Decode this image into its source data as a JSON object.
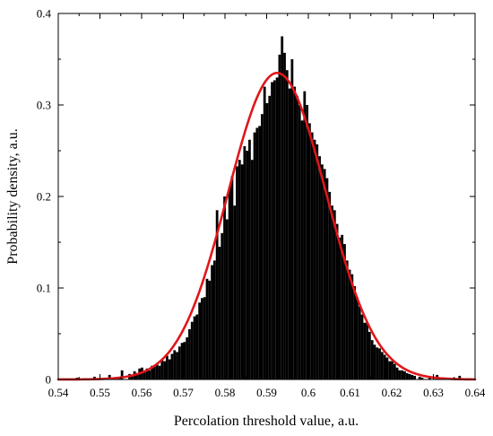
{
  "chart_data": {
    "type": "bar",
    "xlabel": "Percolation threshold value, a.u.",
    "ylabel": "Probability density, a.u.",
    "xlim": [
      0.54,
      0.64
    ],
    "ylim": [
      0,
      0.4
    ],
    "x_ticks": [
      "0.54",
      "0.55",
      "0.56",
      "0.57",
      "0.58",
      "0.59",
      "0.6",
      "0.61",
      "0.62",
      "0.63",
      "0.64"
    ],
    "y_ticks": [
      "0",
      "0.1",
      "0.2",
      "0.3",
      "0.4"
    ],
    "grid": false,
    "colors": {
      "bars": "#000000",
      "fit_curve": "#e0161a",
      "axes": "#000000"
    },
    "histogram": {
      "bin_width": 0.0006,
      "bins": [
        [
          0.5445,
          0.002
        ],
        [
          0.5451,
          0.001
        ],
        [
          0.5487,
          0.003
        ],
        [
          0.5511,
          0.002
        ],
        [
          0.5523,
          0.005
        ],
        [
          0.5547,
          0.003
        ],
        [
          0.5553,
          0.01
        ],
        [
          0.5571,
          0.006
        ],
        [
          0.5577,
          0.004
        ],
        [
          0.5583,
          0.009
        ],
        [
          0.5589,
          0.007
        ],
        [
          0.5595,
          0.012
        ],
        [
          0.5601,
          0.013
        ],
        [
          0.5607,
          0.008
        ],
        [
          0.5613,
          0.012
        ],
        [
          0.5619,
          0.01
        ],
        [
          0.5625,
          0.015
        ],
        [
          0.5631,
          0.014
        ],
        [
          0.5637,
          0.018
        ],
        [
          0.5643,
          0.015
        ],
        [
          0.5649,
          0.022
        ],
        [
          0.5655,
          0.02
        ],
        [
          0.5661,
          0.026
        ],
        [
          0.5667,
          0.022
        ],
        [
          0.5673,
          0.028
        ],
        [
          0.5679,
          0.032
        ],
        [
          0.5685,
          0.03
        ],
        [
          0.5691,
          0.036
        ],
        [
          0.5697,
          0.04
        ],
        [
          0.5703,
          0.041
        ],
        [
          0.5709,
          0.046
        ],
        [
          0.5715,
          0.055
        ],
        [
          0.5721,
          0.063
        ],
        [
          0.5727,
          0.069
        ],
        [
          0.5733,
          0.071
        ],
        [
          0.5739,
          0.084
        ],
        [
          0.5745,
          0.089
        ],
        [
          0.5751,
          0.09
        ],
        [
          0.5757,
          0.11
        ],
        [
          0.5763,
          0.108
        ],
        [
          0.5769,
          0.125
        ],
        [
          0.5775,
          0.13
        ],
        [
          0.5781,
          0.185
        ],
        [
          0.5787,
          0.145
        ],
        [
          0.5793,
          0.16
        ],
        [
          0.5799,
          0.2
        ],
        [
          0.5805,
          0.175
        ],
        [
          0.5811,
          0.21
        ],
        [
          0.5817,
          0.222
        ],
        [
          0.5823,
          0.19
        ],
        [
          0.5829,
          0.233
        ],
        [
          0.5835,
          0.24
        ],
        [
          0.5841,
          0.235
        ],
        [
          0.5847,
          0.255
        ],
        [
          0.5853,
          0.25
        ],
        [
          0.5859,
          0.262
        ],
        [
          0.5865,
          0.24
        ],
        [
          0.5871,
          0.27
        ],
        [
          0.5877,
          0.275
        ],
        [
          0.5883,
          0.277
        ],
        [
          0.5889,
          0.29
        ],
        [
          0.5895,
          0.32
        ],
        [
          0.5901,
          0.302
        ],
        [
          0.5907,
          0.31
        ],
        [
          0.5913,
          0.325
        ],
        [
          0.5919,
          0.327
        ],
        [
          0.5925,
          0.33
        ],
        [
          0.5931,
          0.355
        ],
        [
          0.5937,
          0.375
        ],
        [
          0.5943,
          0.357
        ],
        [
          0.5949,
          0.338
        ],
        [
          0.5955,
          0.318
        ],
        [
          0.5961,
          0.35
        ],
        [
          0.5967,
          0.32
        ],
        [
          0.5973,
          0.31
        ],
        [
          0.5979,
          0.3
        ],
        [
          0.5985,
          0.283
        ],
        [
          0.5991,
          0.315
        ],
        [
          0.5997,
          0.3
        ],
        [
          0.6003,
          0.28
        ],
        [
          0.6009,
          0.27
        ],
        [
          0.6015,
          0.262
        ],
        [
          0.6021,
          0.257
        ],
        [
          0.6027,
          0.244
        ],
        [
          0.6033,
          0.235
        ],
        [
          0.6039,
          0.23
        ],
        [
          0.6045,
          0.22
        ],
        [
          0.6051,
          0.205
        ],
        [
          0.6057,
          0.19
        ],
        [
          0.6063,
          0.185
        ],
        [
          0.6069,
          0.17
        ],
        [
          0.6075,
          0.155
        ],
        [
          0.6081,
          0.158
        ],
        [
          0.6087,
          0.148
        ],
        [
          0.6093,
          0.13
        ],
        [
          0.6099,
          0.12
        ],
        [
          0.6105,
          0.115
        ],
        [
          0.6111,
          0.102
        ],
        [
          0.6117,
          0.09
        ],
        [
          0.6123,
          0.08
        ],
        [
          0.6129,
          0.071
        ],
        [
          0.6135,
          0.062
        ],
        [
          0.6141,
          0.063
        ],
        [
          0.6147,
          0.052
        ],
        [
          0.6153,
          0.043
        ],
        [
          0.6159,
          0.038
        ],
        [
          0.6165,
          0.035
        ],
        [
          0.6171,
          0.034
        ],
        [
          0.6177,
          0.03
        ],
        [
          0.6183,
          0.027
        ],
        [
          0.6189,
          0.024
        ],
        [
          0.6195,
          0.02
        ],
        [
          0.6201,
          0.02
        ],
        [
          0.6207,
          0.017
        ],
        [
          0.6213,
          0.013
        ],
        [
          0.6219,
          0.01
        ],
        [
          0.6225,
          0.01
        ],
        [
          0.6231,
          0.009
        ],
        [
          0.6237,
          0.007
        ],
        [
          0.6243,
          0.006
        ],
        [
          0.6249,
          0.005
        ],
        [
          0.6255,
          0.004
        ],
        [
          0.6267,
          0.003
        ],
        [
          0.6273,
          0.002
        ],
        [
          0.6291,
          0.003
        ],
        [
          0.6309,
          0.005
        ],
        [
          0.6363,
          0.004
        ]
      ]
    },
    "fit_curve": {
      "shape": "gaussian",
      "peak_x": 0.5925,
      "peak_y": 0.335,
      "sigma": 0.0118
    }
  }
}
